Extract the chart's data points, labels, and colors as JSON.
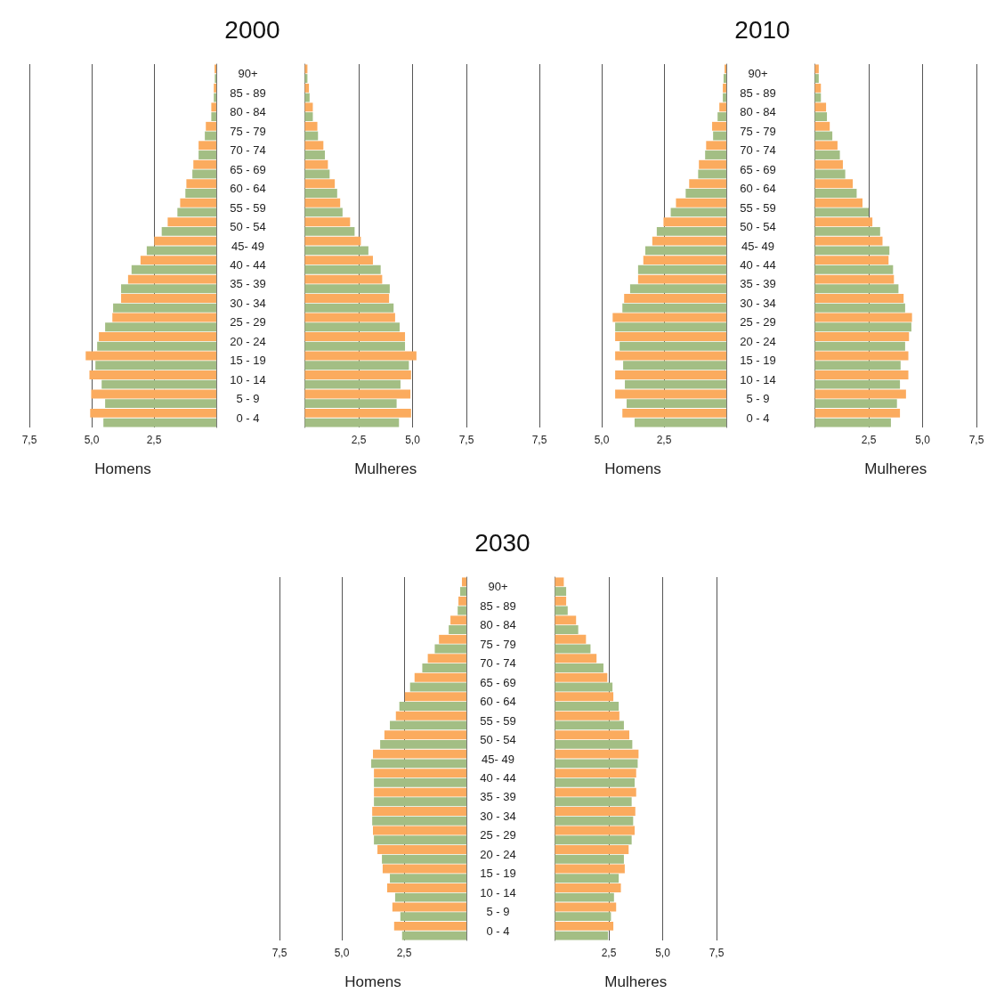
{
  "chart_data": [
    {
      "type": "bar",
      "orientation": "horizontal",
      "title": "2000",
      "xlabel": "Homens",
      "categories": [
        "90+",
        "85 - 89",
        "80 - 84",
        "75 - 79",
        "70 - 74",
        "65 - 69",
        "60 - 64",
        "55 - 59",
        "50 - 54",
        "45- 49",
        "40 - 44",
        "35 - 39",
        "30 - 34",
        "25 - 29",
        "20 - 24",
        "15 - 19",
        "10 - 14",
        "5 - 9",
        "0 - 4"
      ],
      "series": [
        {
          "color": "#fbab5e",
          "values": [
            0.07,
            0.1,
            0.2,
            0.42,
            0.71,
            0.92,
            1.2,
            1.45,
            1.95,
            2.49,
            3.04,
            3.54,
            3.82,
            4.17,
            4.71,
            5.24,
            5.09,
            5.02,
            5.06
          ]
        },
        {
          "color": "#a3be84",
          "values": [
            0.06,
            0.1,
            0.2,
            0.46,
            0.71,
            0.96,
            1.24,
            1.56,
            2.19,
            2.79,
            3.4,
            3.82,
            4.14,
            4.46,
            4.78,
            4.85,
            4.6,
            4.46,
            4.53
          ]
        }
      ],
      "xlim": [
        7.5,
        0
      ],
      "xticks": [
        {
          "value": 7.5,
          "label": "7,5"
        },
        {
          "value": 5,
          "label": "5,0"
        },
        {
          "value": 2.5,
          "label": "2,5"
        }
      ],
      "grid": "x"
    },
    {
      "type": "bar",
      "orientation": "horizontal",
      "xlabel": "Mulheres",
      "categories": [
        null,
        null,
        null,
        null,
        null,
        null,
        null,
        null,
        null,
        null,
        null,
        null,
        null,
        null,
        null,
        null,
        null,
        null,
        null
      ],
      "series": [
        {
          "color": "#fbab5e",
          "values": [
            0.12,
            0.19,
            0.37,
            0.58,
            0.86,
            1.07,
            1.39,
            1.64,
            2.1,
            2.6,
            3.16,
            3.59,
            3.91,
            4.19,
            4.65,
            5.18,
            4.93,
            4.9,
            4.93
          ]
        },
        {
          "color": "#a3be84",
          "values": [
            0.12,
            0.22,
            0.37,
            0.61,
            0.93,
            1.15,
            1.5,
            1.75,
            2.31,
            2.95,
            3.52,
            3.94,
            4.12,
            4.4,
            4.65,
            4.83,
            4.44,
            4.26,
            4.37
          ]
        }
      ],
      "xlim": [
        0,
        7.5
      ],
      "xticks": [
        {
          "value": 2.5,
          "label": "2,5"
        },
        {
          "value": 5,
          "label": "5,0"
        },
        {
          "value": 7.5,
          "label": "7,5"
        }
      ],
      "grid": "x"
    },
    {
      "type": "bar",
      "orientation": "horizontal",
      "title": "2010",
      "xlabel": "Homens",
      "categories": [
        "90+",
        "85 - 89",
        "80 - 84",
        "75 - 79",
        "70 - 74",
        "65 - 69",
        "60 - 64",
        "55 - 59",
        "50 - 54",
        "45- 49",
        "40 - 44",
        "35 - 39",
        "30 - 34",
        "25 - 29",
        "20 - 24",
        "15 - 19",
        "10 - 14",
        "5 - 9",
        "0 - 4"
      ],
      "series": [
        {
          "color": "#fbab5e",
          "values": [
            0.07,
            0.14,
            0.28,
            0.57,
            0.81,
            1.1,
            1.49,
            2.02,
            2.52,
            2.97,
            3.33,
            3.54,
            4.1,
            4.56,
            4.46,
            4.46,
            4.46,
            4.46,
            4.17
          ]
        },
        {
          "color": "#a3be84",
          "values": [
            0.11,
            0.14,
            0.35,
            0.53,
            0.85,
            1.13,
            1.63,
            2.23,
            2.79,
            3.25,
            3.54,
            3.86,
            4.17,
            4.46,
            4.28,
            4.14,
            4.07,
            4.0,
            3.68
          ]
        }
      ],
      "xlim": [
        7.5,
        0
      ],
      "xticks": [
        {
          "value": 7.5,
          "label": "7,5"
        },
        {
          "value": 5,
          "label": "5,0"
        },
        {
          "value": 2.5,
          "label": "2,5"
        }
      ],
      "grid": "x"
    },
    {
      "type": "bar",
      "orientation": "horizontal",
      "xlabel": "Mulheres",
      "categories": [
        null,
        null,
        null,
        null,
        null,
        null,
        null,
        null,
        null,
        null,
        null,
        null,
        null,
        null,
        null,
        null,
        null,
        null,
        null
      ],
      "series": [
        {
          "color": "#fbab5e",
          "values": [
            0.18,
            0.28,
            0.52,
            0.69,
            1.05,
            1.3,
            1.76,
            2.21,
            2.67,
            3.14,
            3.42,
            3.67,
            4.12,
            4.51,
            4.37,
            4.34,
            4.34,
            4.23,
            3.95
          ]
        },
        {
          "color": "#a3be84",
          "values": [
            0.18,
            0.28,
            0.56,
            0.81,
            1.16,
            1.41,
            1.94,
            2.5,
            3.03,
            3.46,
            3.63,
            3.88,
            4.19,
            4.48,
            4.19,
            3.98,
            3.95,
            3.81,
            3.53
          ]
        }
      ],
      "xlim": [
        0,
        7.5
      ],
      "xticks": [
        {
          "value": 2.5,
          "label": "2,5"
        },
        {
          "value": 5,
          "label": "5,0"
        },
        {
          "value": 7.5,
          "label": "7,5"
        }
      ],
      "grid": "x"
    },
    {
      "type": "bar",
      "orientation": "horizontal",
      "title": "2030",
      "xlabel": "Homens",
      "categories": [
        "90+",
        "85 - 89",
        "80 - 84",
        "75 - 79",
        "70 - 74",
        "65 - 69",
        "60 - 64",
        "55 - 59",
        "50 - 54",
        "45- 49",
        "40 - 44",
        "35 - 39",
        "30 - 34",
        "25 - 29",
        "20 - 24",
        "15 - 19",
        "10 - 14",
        "5 - 9",
        "0 - 4"
      ],
      "series": [
        {
          "color": "#fbab5e",
          "values": [
            0.18,
            0.32,
            0.64,
            1.1,
            1.55,
            2.08,
            2.47,
            2.83,
            3.29,
            3.75,
            3.71,
            3.71,
            3.78,
            3.75,
            3.57,
            3.36,
            3.18,
            2.97,
            2.9
          ]
        },
        {
          "color": "#a3be84",
          "values": [
            0.25,
            0.35,
            0.71,
            1.27,
            1.77,
            2.26,
            2.69,
            3.07,
            3.46,
            3.82,
            3.71,
            3.71,
            3.78,
            3.71,
            3.39,
            3.07,
            2.86,
            2.65,
            2.58
          ]
        }
      ],
      "xlim": [
        7.5,
        0
      ],
      "xticks": [
        {
          "value": 7.5,
          "label": "7,5"
        },
        {
          "value": 5,
          "label": "5,0"
        },
        {
          "value": 2.5,
          "label": "2,5"
        }
      ],
      "grid": "x"
    },
    {
      "type": "bar",
      "orientation": "horizontal",
      "xlabel": "Mulheres",
      "categories": [
        null,
        null,
        null,
        null,
        null,
        null,
        null,
        null,
        null,
        null,
        null,
        null,
        null,
        null,
        null,
        null,
        null,
        null,
        null
      ],
      "series": [
        {
          "color": "#fbab5e",
          "values": [
            0.41,
            0.52,
            0.98,
            1.44,
            1.93,
            2.43,
            2.71,
            2.99,
            3.45,
            3.88,
            3.77,
            3.77,
            3.73,
            3.7,
            3.42,
            3.24,
            3.06,
            2.84,
            2.71
          ]
        },
        {
          "color": "#a3be84",
          "values": [
            0.52,
            0.59,
            1.08,
            1.65,
            2.25,
            2.67,
            2.96,
            3.2,
            3.59,
            3.84,
            3.7,
            3.56,
            3.63,
            3.56,
            3.2,
            2.96,
            2.74,
            2.6,
            2.46
          ]
        }
      ],
      "xlim": [
        0,
        7.5
      ],
      "xticks": [
        {
          "value": 2.5,
          "label": "2,5"
        },
        {
          "value": 5,
          "label": "5,0"
        },
        {
          "value": 7.5,
          "label": "7,5"
        }
      ],
      "grid": "x"
    }
  ]
}
